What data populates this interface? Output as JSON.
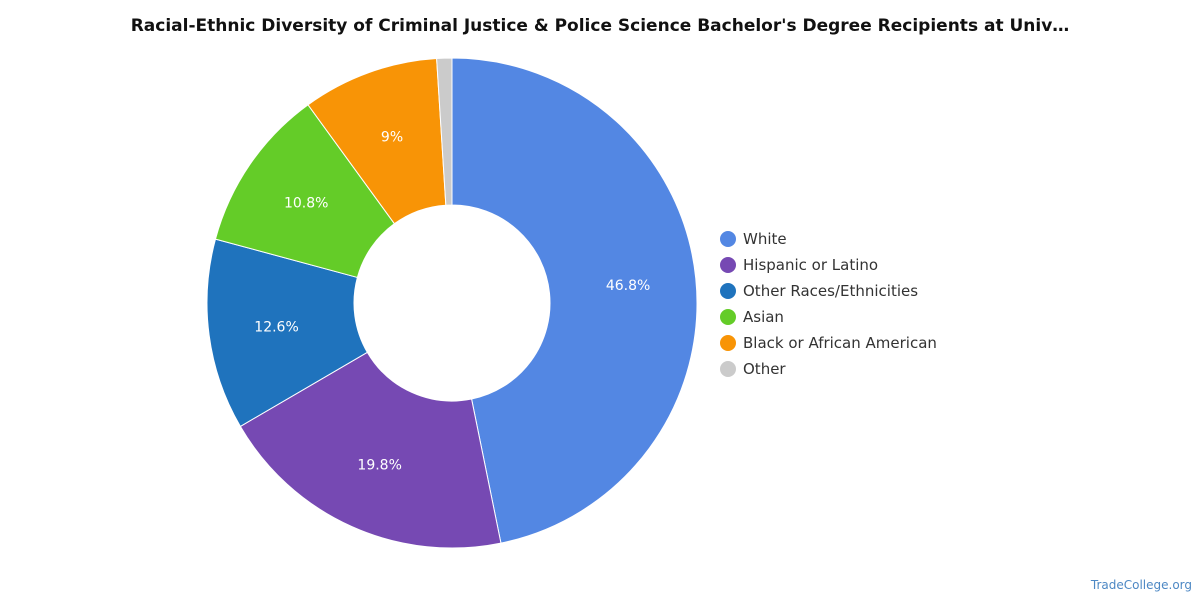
{
  "chart_data": {
    "type": "pie",
    "title": "Racial-Ethnic Diversity of Criminal Justice & Police Science Bachelor's Degree Recipients at Univ…",
    "categories": [
      "White",
      "Hispanic or Latino",
      "Other Races/Ethnicities",
      "Asian",
      "Black or African American",
      "Other"
    ],
    "values": [
      46.8,
      19.8,
      12.6,
      10.8,
      9,
      1
    ],
    "data_labels": [
      "46.8%",
      "19.8%",
      "12.6%",
      "10.8%",
      "9%",
      ""
    ],
    "colors": [
      "#5387e3",
      "#7649b3",
      "#1f73bd",
      "#64cc28",
      "#f89406",
      "#cbcbcb"
    ],
    "donut": true,
    "legend_position": "right"
  },
  "watermark": "TradeCollege.org"
}
